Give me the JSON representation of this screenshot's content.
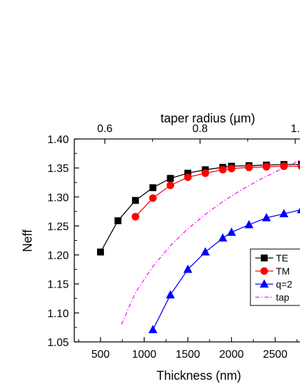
{
  "chart_data": {
    "type": "line",
    "xlabel": "Thickness (nm)",
    "ylabel": "Neff",
    "top_xlabel": "taper radius (µm)",
    "xlim": [
      200,
      2800
    ],
    "ylim": [
      1.05,
      1.4
    ],
    "xticks": [
      500,
      1000,
      1500,
      2000,
      2500
    ],
    "yticks": [
      1.05,
      1.1,
      1.15,
      1.2,
      1.25,
      1.3,
      1.35,
      1.4
    ],
    "xtick_labels": [
      "500",
      "1000",
      "1500",
      "2000",
      "2500"
    ],
    "ytick_labels": [
      "1.05",
      "1.10",
      "1.15",
      "1.20",
      "1.25",
      "1.30",
      "1.35",
      "1.40"
    ],
    "top_ticks": [
      {
        "label": "0.6",
        "x": 550
      },
      {
        "label": "0.8",
        "x": 1640
      },
      {
        "label": "1.",
        "x": 2730
      }
    ],
    "top_axis_note": "taper radius 1.0 at x ≈ 2730",
    "grid": false,
    "legend_position": "right",
    "series": [
      {
        "name": "TE",
        "color": "#000000",
        "marker": "square",
        "line": "solid",
        "x": [
          500,
          700,
          900,
          1100,
          1300,
          1500,
          1700,
          1900,
          2000,
          2200,
          2400,
          2600,
          2800
        ],
        "y": [
          1.205,
          1.259,
          1.294,
          1.316,
          1.332,
          1.341,
          1.347,
          1.351,
          1.353,
          1.354,
          1.355,
          1.356,
          1.356
        ]
      },
      {
        "name": "TM",
        "color": "#ff0000",
        "marker": "circle",
        "line": "solid",
        "x": [
          900,
          1100,
          1300,
          1500,
          1700,
          1900,
          2000,
          2200,
          2400,
          2600,
          2800
        ],
        "y": [
          1.266,
          1.298,
          1.32,
          1.334,
          1.341,
          1.347,
          1.349,
          1.351,
          1.352,
          1.353,
          1.353
        ]
      },
      {
        "name": "q=2",
        "color": "#0000ff",
        "marker": "triangle",
        "line": "solid",
        "x": [
          1100,
          1300,
          1500,
          1700,
          1900,
          2000,
          2200,
          2400,
          2600,
          2800
        ],
        "y": [
          1.071,
          1.131,
          1.175,
          1.205,
          1.229,
          1.239,
          1.252,
          1.264,
          1.271,
          1.278
        ]
      },
      {
        "name": "tap",
        "color": "#ff00ff",
        "marker": "none",
        "line": "dashdot",
        "x": [
          740,
          900,
          1100,
          1300,
          1500,
          1700,
          1900,
          2100,
          2300,
          2500,
          2700,
          2800
        ],
        "y": [
          1.08,
          1.135,
          1.18,
          1.216,
          1.245,
          1.27,
          1.292,
          1.311,
          1.328,
          1.343,
          1.357,
          1.365
        ]
      }
    ]
  }
}
